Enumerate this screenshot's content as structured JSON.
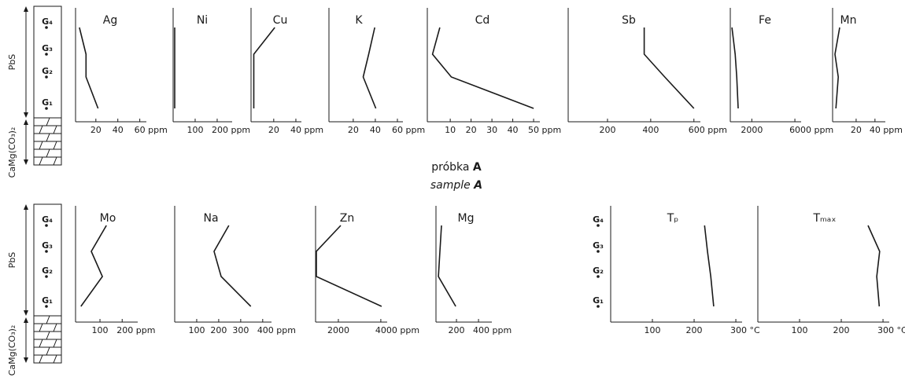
{
  "column": {
    "upper": "PbS",
    "lower": "CaMg(CO₃)₂",
    "levels": [
      "G₁",
      "G₂",
      "G₃",
      "G₄"
    ]
  },
  "caption": {
    "line1": "próbka",
    "line1_bold": "A",
    "line2": "sample",
    "line2_bold": "A"
  },
  "chart_data": [
    {
      "type": "line",
      "title": "Ag",
      "color": "#1a1a1a",
      "values": [
        22,
        11,
        11,
        5
      ],
      "xlim": [
        1.5,
        66
      ],
      "xticks": [
        20,
        40,
        {
          "value": 60,
          "label": "60 ppm"
        }
      ]
    },
    {
      "type": "line",
      "title": "Ni",
      "color": "#1a1a1a",
      "values": [
        7,
        7,
        7,
        7
      ],
      "xlim": [
        0,
        268
      ],
      "xticks": [
        100,
        {
          "value": 200,
          "label": "200 ppm"
        }
      ]
    },
    {
      "type": "line",
      "title": "Cu",
      "color": "#1a1a1a",
      "values": [
        2,
        2,
        2,
        21
      ],
      "xlim": [
        -0.5,
        45
      ],
      "xticks": [
        20,
        {
          "value": 40,
          "label": "40 ppm"
        }
      ]
    },
    {
      "type": "line",
      "title": "K",
      "color": "#1a1a1a",
      "values": [
        40.5,
        29,
        34,
        39.5
      ],
      "xlim": [
        -2,
        65
      ],
      "xticks": [
        20,
        40,
        {
          "value": 60,
          "label": "60 ppm"
        }
      ]
    },
    {
      "type": "line",
      "title": "Cd",
      "color": "#1a1a1a",
      "values": [
        50,
        10.5,
        1.5,
        5
      ],
      "xlim": [
        -1,
        53
      ],
      "xticks": [
        10,
        20,
        30,
        40,
        {
          "value": 50,
          "label": "50 ppm"
        }
      ]
    },
    {
      "type": "line",
      "title": "Sb",
      "color": "#1a1a1a",
      "values": [
        600,
        465,
        370,
        370
      ],
      "xlim": [
        18,
        630
      ],
      "xticks": [
        200,
        400,
        {
          "value": 600,
          "label": "600 ppm"
        }
      ]
    },
    {
      "type": "line",
      "title": "Fe",
      "color": "#1a1a1a",
      "values": [
        730,
        600,
        450,
        150
      ],
      "xlim": [
        0,
        6580
      ],
      "xticks": [
        2000,
        {
          "value": 6000,
          "label": "6000 ppm"
        }
      ]
    },
    {
      "type": "line",
      "title": "Mn",
      "color": "#1a1a1a",
      "values": [
        -1.5,
        1,
        -2.5,
        2.5
      ],
      "xlim": [
        -5,
        51
      ],
      "xticks": [
        20,
        {
          "value": 40,
          "label": "40 ppm"
        }
      ]
    },
    {
      "type": "line",
      "title": "Mo",
      "color": "#1a1a1a",
      "values": [
        14,
        111,
        61,
        129
      ],
      "xlim": [
        -10,
        270
      ],
      "xticks": [
        100,
        {
          "value": 200,
          "label": "200 ppm"
        }
      ]
    },
    {
      "type": "line",
      "title": "Na",
      "color": "#1a1a1a",
      "values": [
        346,
        211,
        179,
        246
      ],
      "xlim": [
        0,
        440
      ],
      "xticks": [
        100,
        200,
        300,
        {
          "value": 400,
          "label": "400 ppm"
        }
      ]
    },
    {
      "type": "line",
      "title": "Zn",
      "color": "#1a1a1a",
      "values": [
        4037,
        963,
        963,
        2111
      ],
      "xlim": [
        926,
        4300
      ],
      "xticks": [
        2000,
        {
          "value": 4000,
          "label": "4000 ppm"
        }
      ]
    },
    {
      "type": "line",
      "title": "Mg",
      "color": "#1a1a1a",
      "values": [
        193,
        36,
        50,
        64
      ],
      "xlim": [
        14,
        521
      ],
      "xticks": [
        200,
        {
          "value": 400,
          "label": "400 ppm"
        }
      ]
    },
    {
      "type": "line",
      "title": "Tₚ",
      "color": "#1a1a1a",
      "categories": [
        "G₁",
        "G₂",
        "G₃",
        "G₄"
      ],
      "values": [
        247,
        240,
        232,
        225
      ],
      "xlim": [
        0,
        315
      ],
      "xticks": [
        100,
        200,
        {
          "value": 300,
          "label": "300 °C"
        }
      ]
    },
    {
      "type": "line",
      "title": "Tₘₐₓ",
      "color": "#1a1a1a",
      "values": [
        291,
        285,
        292,
        264
      ],
      "xlim": [
        0,
        315
      ],
      "xticks": [
        100,
        200,
        {
          "value": 300,
          "label": "300 °C"
        }
      ]
    }
  ]
}
